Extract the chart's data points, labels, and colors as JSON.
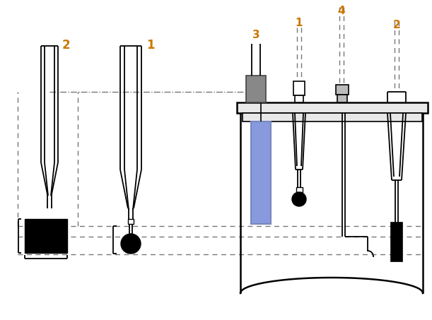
{
  "bg_color": "#ffffff",
  "line_color": "#000000",
  "blue_color": "#8899dd",
  "gray_color": "#888888",
  "dashed_color": "#777777",
  "label_color": "#cc7700",
  "figsize": [
    6.11,
    4.53
  ],
  "dpi": 100
}
